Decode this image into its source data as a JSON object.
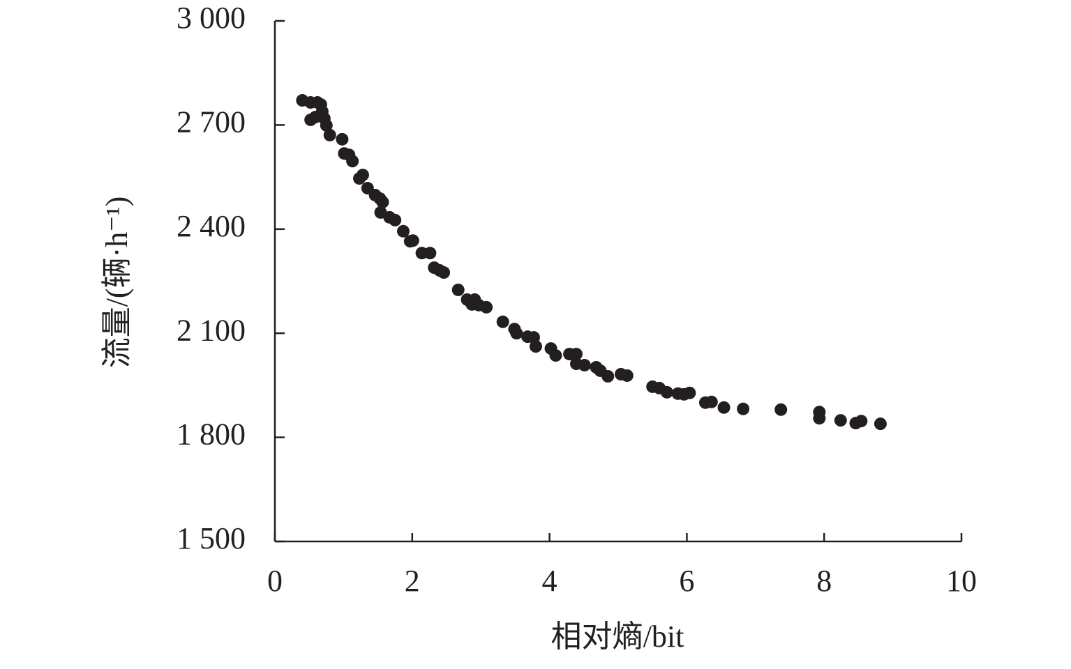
{
  "chart_data": {
    "type": "scatter",
    "x_label": "相对熵/bit",
    "y_label": "流量/(辆·h⁻¹)",
    "x": [
      0.4,
      0.52,
      0.62,
      0.67,
      0.52,
      0.59,
      0.72,
      0.69,
      0.75,
      0.8,
      0.98,
      1.01,
      1.08,
      1.13,
      1.23,
      1.28,
      1.35,
      1.46,
      1.53,
      1.57,
      1.54,
      1.67,
      1.75,
      1.87,
      1.97,
      2.01,
      2.14,
      2.26,
      2.32,
      2.4,
      2.46,
      2.67,
      2.8,
      2.87,
      2.91,
      2.97,
      3.08,
      3.32,
      3.49,
      3.52,
      3.68,
      3.77,
      3.8,
      4.02,
      4.09,
      4.29,
      4.39,
      4.39,
      4.51,
      4.68,
      4.74,
      4.85,
      5.04,
      5.13,
      5.5,
      5.6,
      5.71,
      5.87,
      5.96,
      6.04,
      6.27,
      6.36,
      6.54,
      6.82,
      7.37,
      7.93,
      7.93,
      8.24,
      8.46,
      8.54,
      8.82
    ],
    "values": [
      2771,
      2765,
      2765,
      2759,
      2715,
      2723,
      2719,
      2739,
      2699,
      2671,
      2659,
      2618,
      2614,
      2596,
      2546,
      2556,
      2518,
      2498,
      2488,
      2478,
      2448,
      2434,
      2426,
      2394,
      2365,
      2367,
      2331,
      2331,
      2289,
      2281,
      2275,
      2225,
      2197,
      2183,
      2197,
      2181,
      2175,
      2133,
      2112,
      2100,
      2090,
      2088,
      2062,
      2056,
      2036,
      2040,
      2040,
      2012,
      2008,
      2002,
      1992,
      1976,
      1982,
      1978,
      1946,
      1942,
      1930,
      1926,
      1924,
      1928,
      1900,
      1902,
      1886,
      1882,
      1880,
      1873,
      1855,
      1849,
      1841,
      1847,
      1839
    ],
    "color": "#231f20",
    "xlim": [
      0,
      10
    ],
    "xticks": [
      0,
      2,
      4,
      6,
      8,
      10
    ],
    "ylim": [
      1500,
      3000
    ],
    "yticks": [
      {
        "value": 1500,
        "label": "1 500"
      },
      {
        "value": 1800,
        "label": "1 800"
      },
      {
        "value": 2100,
        "label": "2 100"
      },
      {
        "value": 2400,
        "label": "2 400"
      },
      {
        "value": 2700,
        "label": "2 700"
      },
      {
        "value": 3000,
        "label": "3 000"
      }
    ]
  }
}
